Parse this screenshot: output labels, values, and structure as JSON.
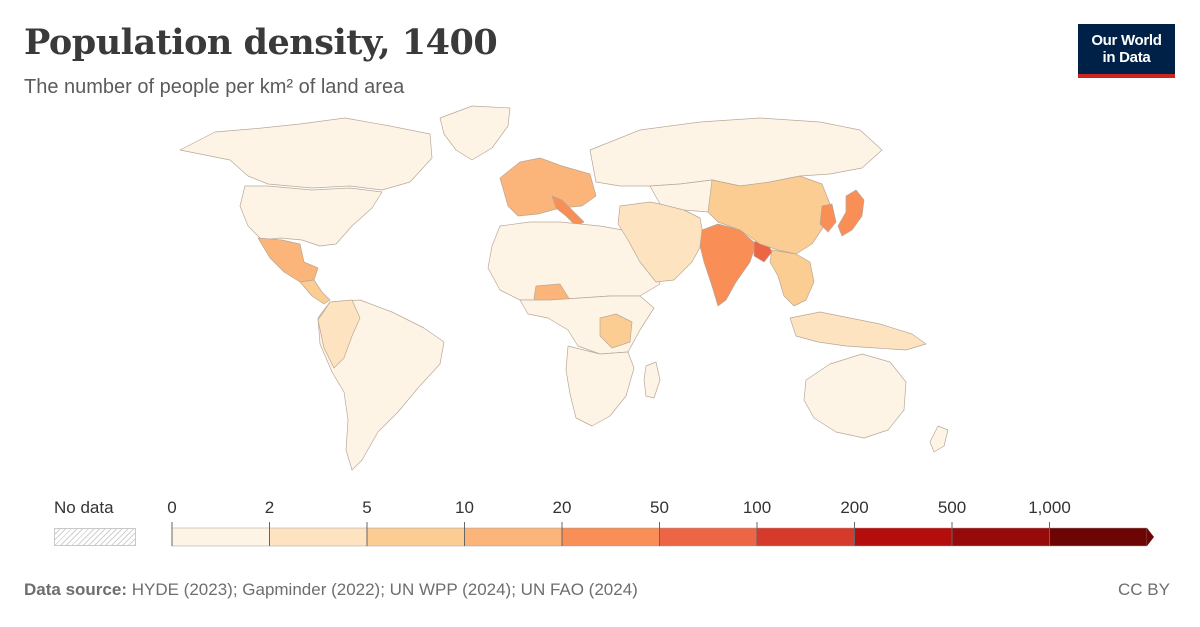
{
  "header": {
    "title": "Population density, 1400",
    "subtitle": "The number of people per km² of land area"
  },
  "logo": {
    "line1": "Our World",
    "line2": "in Data"
  },
  "legend": {
    "no_data_label": "No data",
    "tick_labels": [
      "0",
      "2",
      "5",
      "10",
      "20",
      "50",
      "100",
      "200",
      "500",
      "1,000"
    ],
    "bins": [
      {
        "from": 0,
        "to": 2,
        "color": "#fef4e6"
      },
      {
        "from": 2,
        "to": 5,
        "color": "#fde3c0"
      },
      {
        "from": 5,
        "to": 10,
        "color": "#fccd92"
      },
      {
        "from": 10,
        "to": 20,
        "color": "#fbb47a"
      },
      {
        "from": 20,
        "to": 50,
        "color": "#f98e57"
      },
      {
        "from": 50,
        "to": 100,
        "color": "#ec6545"
      },
      {
        "from": 100,
        "to": 200,
        "color": "#d63a2a"
      },
      {
        "from": 200,
        "to": 500,
        "color": "#b50c0c"
      },
      {
        "from": 500,
        "to": 1000,
        "color": "#960a0a"
      },
      {
        "from": 1000,
        "to": null,
        "color": "#6d0505"
      }
    ]
  },
  "regions": [
    {
      "name": "Canada",
      "bin": 0
    },
    {
      "name": "United States",
      "bin": 0
    },
    {
      "name": "Mexico",
      "bin": 3
    },
    {
      "name": "Central America",
      "bin": 2
    },
    {
      "name": "South America",
      "bin": 0
    },
    {
      "name": "Colombia / Peru",
      "bin": 1
    },
    {
      "name": "Greenland",
      "bin": 0
    },
    {
      "name": "Western Europe",
      "bin": 3
    },
    {
      "name": "Italy",
      "bin": 4
    },
    {
      "name": "Russia",
      "bin": 0
    },
    {
      "name": "North Africa",
      "bin": 0
    },
    {
      "name": "Nigeria",
      "bin": 3
    },
    {
      "name": "Central Africa",
      "bin": 0
    },
    {
      "name": "Great Lakes Africa",
      "bin": 2
    },
    {
      "name": "Southern Africa",
      "bin": 0
    },
    {
      "name": "Madagascar",
      "bin": 0
    },
    {
      "name": "Middle East",
      "bin": 1
    },
    {
      "name": "Central Asia",
      "bin": 0
    },
    {
      "name": "India",
      "bin": 4
    },
    {
      "name": "Bangladesh",
      "bin": 5
    },
    {
      "name": "China",
      "bin": 2
    },
    {
      "name": "Japan",
      "bin": 4
    },
    {
      "name": "Korea",
      "bin": 4
    },
    {
      "name": "Southeast Asia",
      "bin": 2
    },
    {
      "name": "Indonesia",
      "bin": 1
    },
    {
      "name": "Australia",
      "bin": 0
    },
    {
      "name": "New Zealand",
      "bin": 0
    }
  ],
  "footer": {
    "source_label": "Data source:",
    "source_text": "HYDE (2023); Gapminder (2022); UN WPP (2024); UN FAO (2024)",
    "license": "CC BY"
  }
}
